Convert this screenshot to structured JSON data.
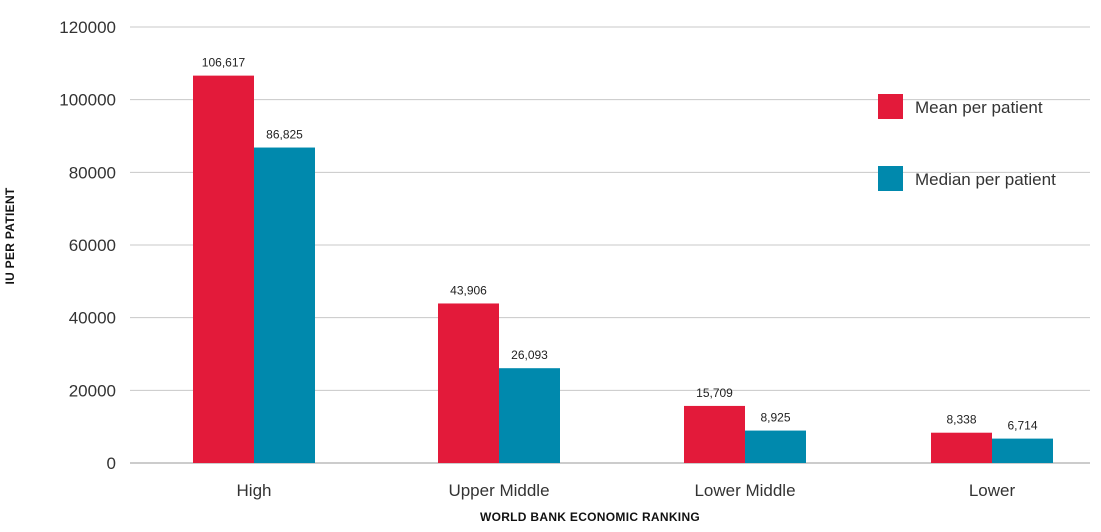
{
  "chart_data": {
    "type": "bar",
    "title": "",
    "xlabel": "WORLD BANK ECONOMIC RANKING",
    "ylabel": "IU PER PATIENT",
    "ylim": [
      0,
      120000
    ],
    "yticks": [
      "0",
      "20000",
      "40000",
      "60000",
      "80000",
      "100000",
      "120000"
    ],
    "categories": [
      "High",
      "Upper Middle",
      "Lower Middle",
      "Lower"
    ],
    "series": [
      {
        "name": "Mean per patient",
        "color": "#e31a3a",
        "values": [
          106617,
          43906,
          15709,
          8338
        ],
        "labels": [
          "106,617",
          "43,906",
          "15,709",
          "8,338"
        ]
      },
      {
        "name": "Median per patient",
        "color": "#0089ad",
        "values": [
          86825,
          26093,
          8925,
          6714
        ],
        "labels": [
          "86,825",
          "26,093",
          "8,925",
          "6,714"
        ]
      }
    ],
    "grid": true,
    "legend": "top-right"
  }
}
